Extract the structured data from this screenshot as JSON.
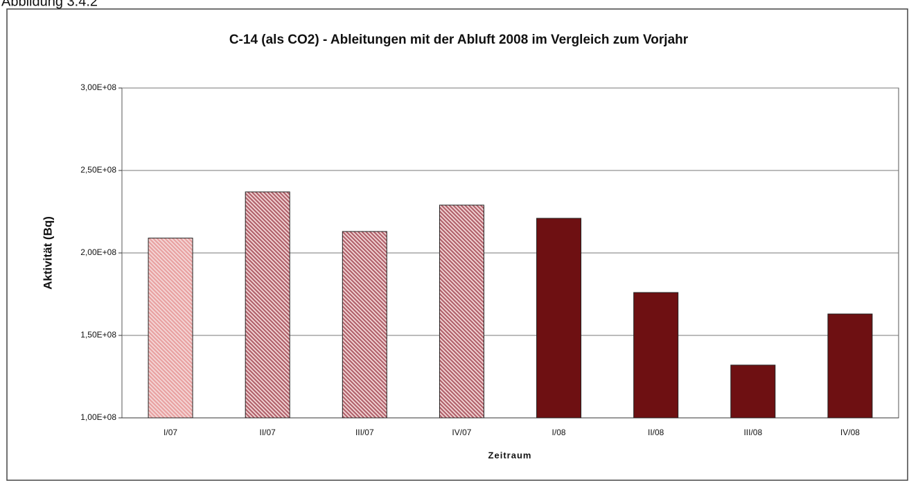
{
  "caption": "Abbildung 3.4.2",
  "chart_data": {
    "type": "bar",
    "title": "C-14 (als CO2) - Ableitungen mit der Abluft 2008 im Vergleich zum Vorjahr",
    "x_label": "Zeitraum",
    "y_label": "Aktivität (Bq)",
    "categories": [
      "I/07",
      "II/07",
      "III/07",
      "IV/07",
      "I/08",
      "II/08",
      "III/08",
      "IV/08"
    ],
    "values": [
      209000000,
      237000000,
      213000000,
      229000000,
      221000000,
      176000000,
      132000000,
      163000000
    ],
    "colors": [
      "#e8a0a0",
      "#b0606a",
      "#b0606a",
      "#b0606a",
      "#6e1012",
      "#6e1012",
      "#6e1012",
      "#6e1012"
    ],
    "hatched": [
      true,
      true,
      true,
      true,
      false,
      false,
      false,
      false
    ],
    "ylim": [
      100000000,
      300000000
    ],
    "yticks": [
      {
        "value": 100000000,
        "label": "1,00E+08"
      },
      {
        "value": 150000000,
        "label": "1,50E+08"
      },
      {
        "value": 200000000,
        "label": "2,00E+08"
      },
      {
        "value": 250000000,
        "label": "2,50E+08"
      },
      {
        "value": 300000000,
        "label": "3,00E+08"
      }
    ],
    "grid": true
  }
}
